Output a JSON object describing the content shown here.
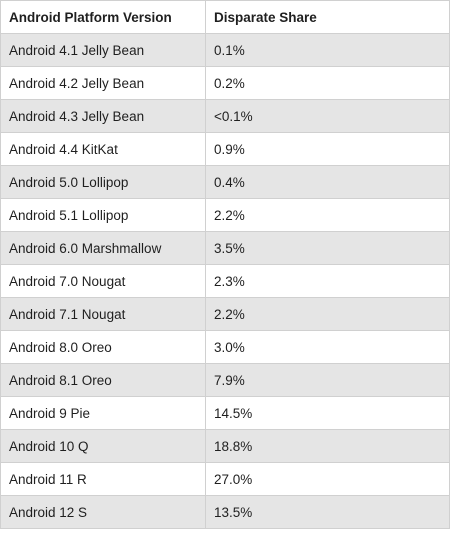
{
  "table": {
    "headers": [
      "Android Platform Version",
      "Disparate Share"
    ],
    "rows": [
      [
        "Android 4.1 Jelly Bean",
        "0.1%"
      ],
      [
        "Android 4.2 Jelly Bean",
        "0.2%"
      ],
      [
        "Android 4.3 Jelly Bean",
        "<0.1%"
      ],
      [
        "Android 4.4 KitKat",
        "0.9%"
      ],
      [
        "Android 5.0 Lollipop",
        "0.4%"
      ],
      [
        "Android 5.1 Lollipop",
        "2.2%"
      ],
      [
        "Android 6.0 Marshmallow",
        "3.5%"
      ],
      [
        "Android 7.0 Nougat",
        "2.3%"
      ],
      [
        "Android 7.1 Nougat",
        "2.2%"
      ],
      [
        "Android 8.0 Oreo",
        "3.0%"
      ],
      [
        "Android 8.1 Oreo",
        "7.9%"
      ],
      [
        "Android 9 Pie",
        "14.5%"
      ],
      [
        "Android 10 Q",
        "18.8%"
      ],
      [
        "Android 11 R",
        "27.0%"
      ],
      [
        "Android 12 S",
        "13.5%"
      ]
    ]
  },
  "colors": {
    "stripe": "#e5e5e5",
    "border": "#d0d0d0",
    "text": "#1f1f1f"
  }
}
